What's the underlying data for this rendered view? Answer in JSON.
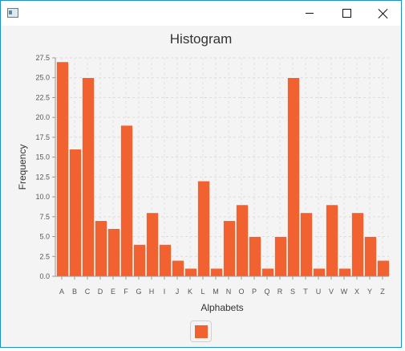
{
  "window": {
    "icon": "app-window-icon",
    "buttons": [
      "minimize-icon",
      "maximize-icon",
      "close-icon"
    ]
  },
  "chart_data": {
    "type": "bar",
    "title": "Histogram",
    "xlabel": "Alphabets",
    "ylabel": "Frequency",
    "categories": [
      "A",
      "B",
      "C",
      "D",
      "E",
      "F",
      "G",
      "H",
      "I",
      "J",
      "K",
      "L",
      "M",
      "N",
      "O",
      "P",
      "Q",
      "R",
      "S",
      "T",
      "U",
      "V",
      "W",
      "X",
      "Y",
      "Z"
    ],
    "values": [
      27,
      16,
      25,
      7,
      6,
      19,
      4,
      8,
      4,
      2,
      1,
      12,
      1,
      7,
      9,
      5,
      1,
      5,
      25,
      8,
      1,
      9,
      1,
      8,
      5,
      2
    ],
    "ylim": [
      0,
      27.5
    ],
    "yticks": [
      "0.0",
      "2.5",
      "5.0",
      "7.5",
      "10.0",
      "12.5",
      "15.0",
      "17.5",
      "20.0",
      "22.5",
      "25.0",
      "27.5"
    ],
    "grid": true,
    "legend": "bottom",
    "bar_color": "#f26130"
  }
}
